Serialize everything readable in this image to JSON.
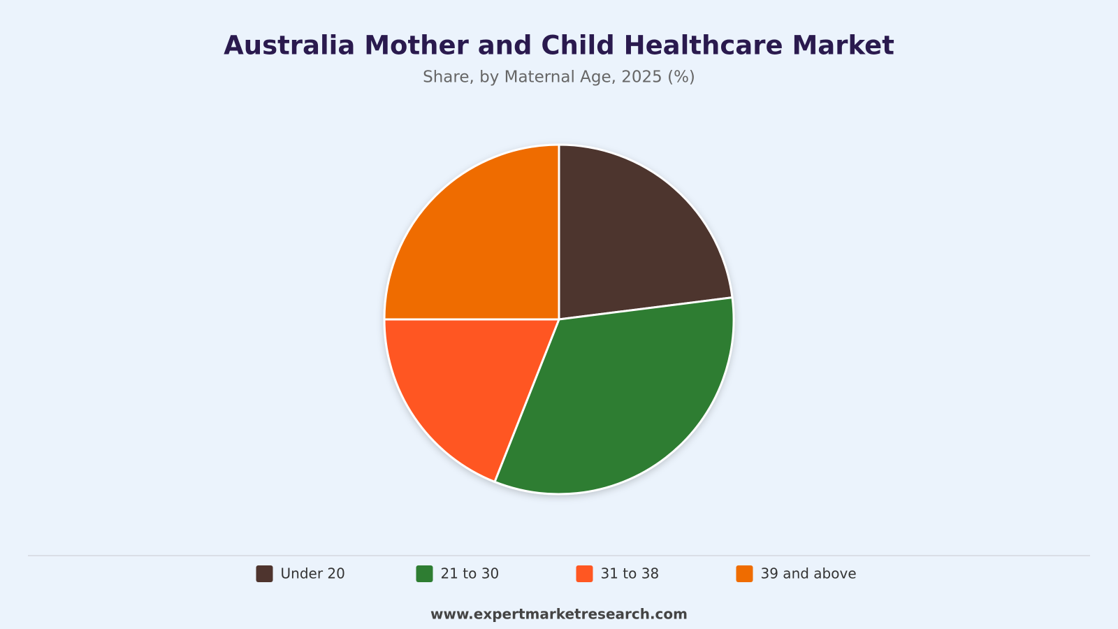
{
  "chart_data": {
    "type": "pie",
    "title": "Australia Mother and Child Healthcare Market",
    "subtitle": "Share, by Maternal Age, 2025 (%)",
    "categories": [
      "Under 20",
      "21 to 30",
      "31 to 38",
      "39 and above"
    ],
    "values": [
      23,
      33,
      19,
      25
    ],
    "colors": [
      "#4e342e",
      "#2e7d32",
      "#ff5722",
      "#ef6c00"
    ],
    "legend": "bottom",
    "source": "www.expertmarketresearch.com"
  }
}
